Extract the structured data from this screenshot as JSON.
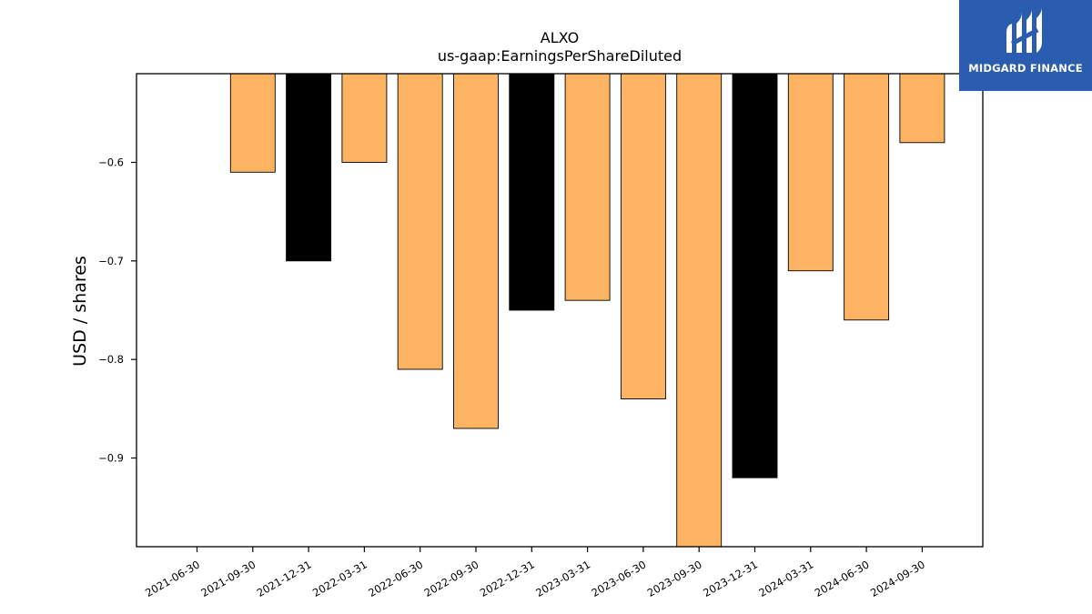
{
  "chart_data": {
    "type": "bar",
    "title": "ALXO",
    "subtitle": "us-gaap:EarningsPerShareDiluted",
    "xlabel": "",
    "ylabel": "USD / shares",
    "categories": [
      "2021-06-30",
      "2021-09-30",
      "2021-12-31",
      "2022-03-31",
      "2022-06-30",
      "2022-09-30",
      "2022-12-31",
      "2023-03-31",
      "2023-06-30",
      "2023-09-30",
      "2023-12-31",
      "2024-03-31",
      "2024-06-30",
      "2024-09-30"
    ],
    "values": [
      null,
      -0.61,
      -0.7,
      -0.6,
      -0.81,
      -0.87,
      -0.75,
      -0.74,
      -0.84,
      -0.99,
      -0.92,
      -0.71,
      -0.76,
      -0.58
    ],
    "highlight": [
      false,
      false,
      true,
      false,
      false,
      false,
      true,
      false,
      false,
      false,
      true,
      false,
      false,
      false
    ],
    "ylim": [
      -0.99,
      -0.51
    ],
    "yticks": [
      -0.6,
      -0.7,
      -0.8,
      -0.9
    ],
    "ytick_labels": [
      "−0.6",
      "−0.7",
      "−0.8",
      "−0.9"
    ],
    "grid": false,
    "colors": {
      "bar": "#fdb462",
      "highlight": "#000000",
      "edge": "#000000"
    }
  },
  "logo": {
    "text": "MIDGARD FINANCE",
    "background": "#2a5db0"
  }
}
